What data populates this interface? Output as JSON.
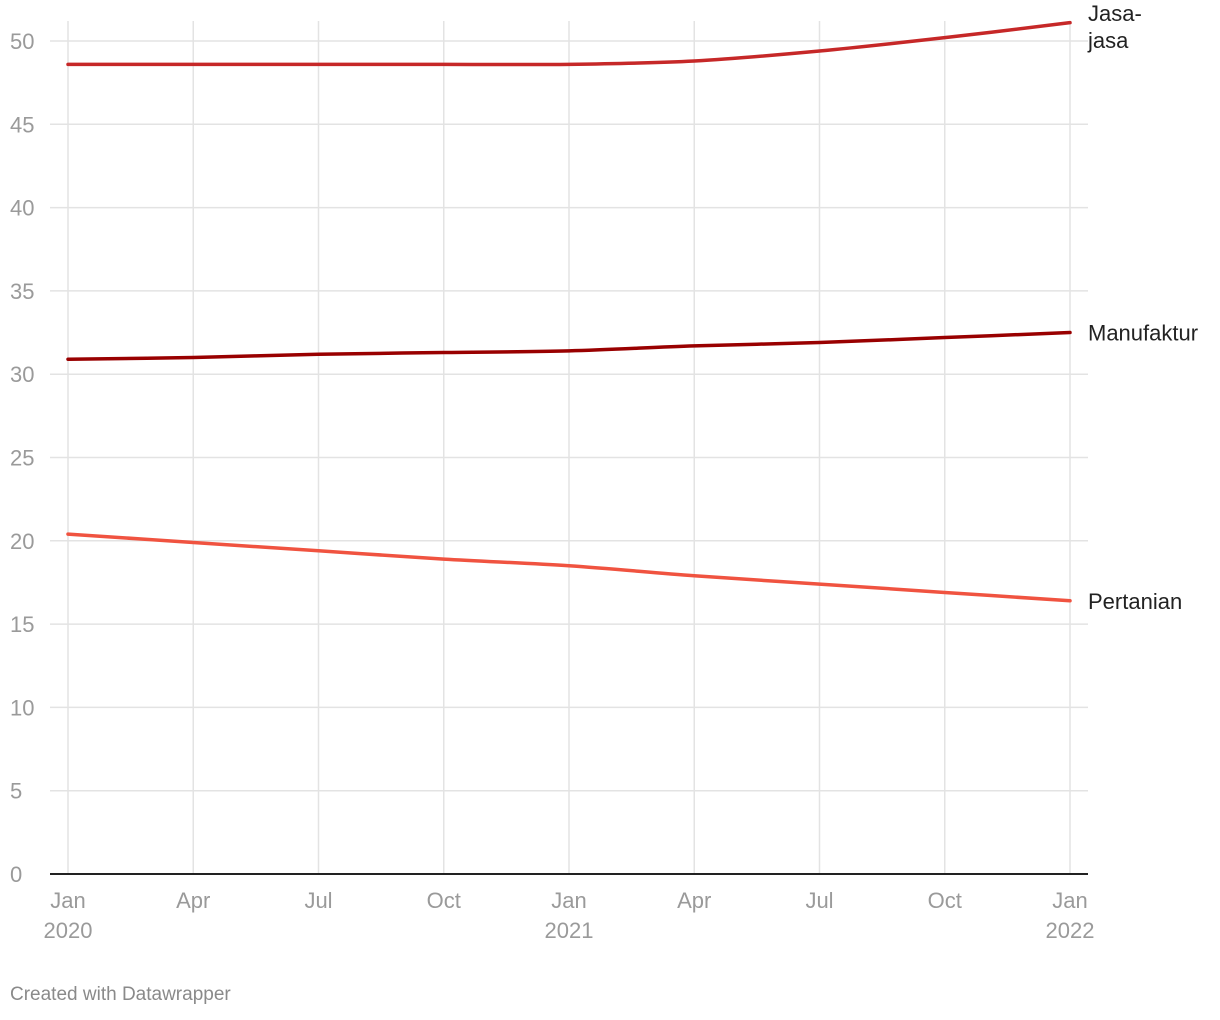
{
  "chart_data": {
    "type": "line",
    "title": "",
    "xlabel": "",
    "ylabel": "",
    "x": [
      "2020-01",
      "2020-04",
      "2020-07",
      "2020-10",
      "2021-01",
      "2021-04",
      "2021-07",
      "2021-10",
      "2022-01"
    ],
    "x_tick_labels": [
      {
        "month": "Jan",
        "year": "2020"
      },
      {
        "month": "Apr",
        "year": ""
      },
      {
        "month": "Jul",
        "year": ""
      },
      {
        "month": "Oct",
        "year": ""
      },
      {
        "month": "Jan",
        "year": "2021"
      },
      {
        "month": "Apr",
        "year": ""
      },
      {
        "month": "Jul",
        "year": ""
      },
      {
        "month": "Oct",
        "year": ""
      },
      {
        "month": "Jan",
        "year": "2022"
      }
    ],
    "ylim": [
      0,
      50
    ],
    "y_ticks": [
      "0",
      "5",
      "10",
      "15",
      "20",
      "25",
      "30",
      "35",
      "40",
      "45",
      "50"
    ],
    "grid": true,
    "series": [
      {
        "name": "Jasa-jasa",
        "label_lines": [
          "Jasa-",
          "jasa"
        ],
        "color": "#c62828",
        "values": [
          48.6,
          48.6,
          48.6,
          48.6,
          48.6,
          48.8,
          49.4,
          50.2,
          51.1
        ]
      },
      {
        "name": "Manufaktur",
        "label_lines": [
          "Manufaktur"
        ],
        "color": "#990000",
        "values": [
          30.9,
          31.0,
          31.2,
          31.3,
          31.4,
          31.7,
          31.9,
          32.2,
          32.5
        ]
      },
      {
        "name": "Pertanian",
        "label_lines": [
          "Pertanian"
        ],
        "color": "#f05340",
        "values": [
          20.4,
          19.9,
          19.4,
          18.9,
          18.5,
          17.9,
          17.4,
          16.9,
          16.4
        ]
      }
    ]
  },
  "footer": {
    "credit": "Created with Datawrapper"
  }
}
